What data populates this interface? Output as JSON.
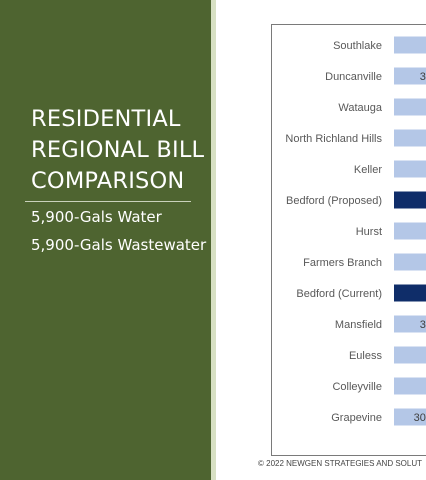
{
  "slide": {
    "title": "RESIDENTIAL REGIONAL BILL COMPARISON",
    "subtitle_water": "5,900-Gals Water",
    "subtitle_wastewater": "5,900-Gals Wastewater",
    "footer": "© 2022 NEWGEN STRATEGIES AND SOLUT"
  },
  "colors": {
    "panel": "#4e6430",
    "accent": "#d7e0c3",
    "bar_default": "#b4c7e7",
    "bar_bedford": "#0f2d69"
  },
  "chart_data": {
    "type": "bar",
    "orientation": "horizontal",
    "categories": [
      "Southlake",
      "Duncanville",
      "Watauga",
      "North Richland Hills",
      "Keller",
      "Bedford (Proposed)",
      "Hurst",
      "Farmers Branch",
      "Bedford (Current)",
      "Mansfield",
      "Euless",
      "Colleyville",
      "Grapevine"
    ],
    "highlighted": [
      "Bedford (Proposed)",
      "Bedford (Current)"
    ],
    "visible_value_labels": {
      "Duncanville": "3",
      "Mansfield": "3",
      "Grapevine": "30"
    }
  }
}
